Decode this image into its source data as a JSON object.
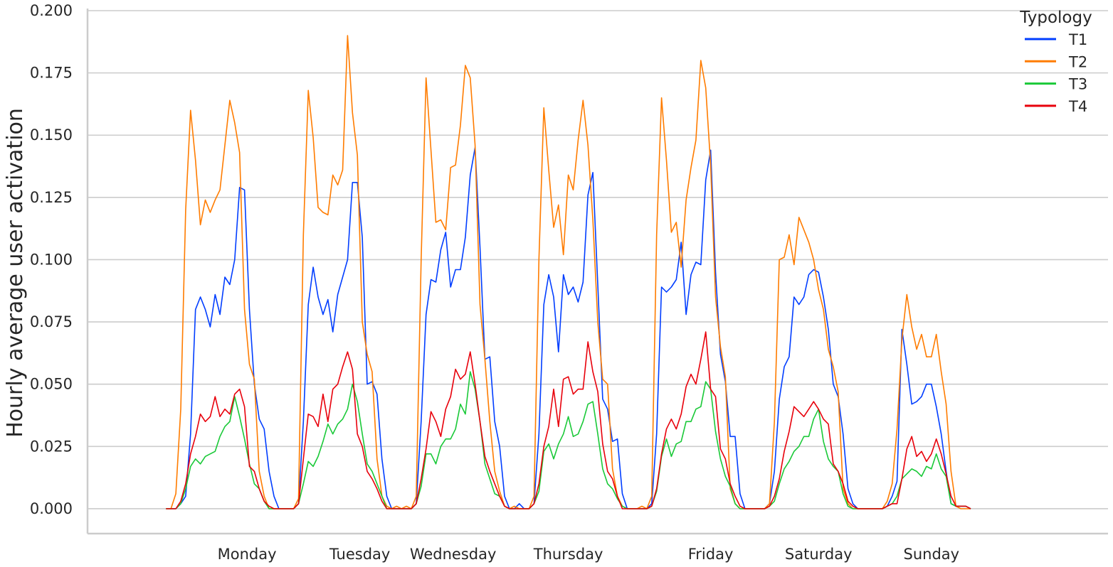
{
  "chart_data": {
    "type": "line",
    "ylabel": "Hourly average user activation",
    "xlabel": "",
    "ylim": [
      -0.01,
      0.2
    ],
    "yticks": [
      "0.000",
      "0.025",
      "0.050",
      "0.075",
      "0.100",
      "0.125",
      "0.150",
      "0.175",
      "0.200"
    ],
    "ytick_values": [
      0,
      0.025,
      0.05,
      0.075,
      0.1,
      0.125,
      0.15,
      0.175,
      0.2
    ],
    "x_unit": "hour of week",
    "xlim": [
      -16,
      192
    ],
    "day_labels": [
      "Monday",
      "Tuesday",
      "Wednesday",
      "Thursday",
      "Friday",
      "Saturday",
      "Sunday"
    ],
    "day_label_hours": [
      16.5,
      39.5,
      58.5,
      82,
      111,
      133,
      156
    ],
    "grid": "horizontal",
    "legend": {
      "title": "Typology",
      "placement": "top-right"
    },
    "series": [
      {
        "name": "T1",
        "color": "#023eff",
        "values": [
          0,
          0,
          0,
          0.002,
          0.005,
          0.03,
          0.08,
          0.085,
          0.08,
          0.073,
          0.086,
          0.078,
          0.093,
          0.09,
          0.1,
          0.129,
          0.128,
          0.08,
          0.05,
          0.036,
          0.032,
          0.015,
          0.005,
          0,
          0,
          0,
          0,
          0.002,
          0.035,
          0.082,
          0.097,
          0.085,
          0.078,
          0.084,
          0.071,
          0.086,
          0.093,
          0.1,
          0.131,
          0.131,
          0.109,
          0.05,
          0.051,
          0.046,
          0.02,
          0.005,
          0,
          0,
          0,
          0,
          0,
          0.002,
          0.035,
          0.078,
          0.092,
          0.091,
          0.104,
          0.111,
          0.089,
          0.096,
          0.096,
          0.109,
          0.134,
          0.145,
          0.105,
          0.06,
          0.061,
          0.035,
          0.025,
          0.005,
          0,
          0,
          0.002,
          0,
          0,
          0.002,
          0.03,
          0.082,
          0.094,
          0.085,
          0.063,
          0.094,
          0.086,
          0.089,
          0.083,
          0.091,
          0.126,
          0.135,
          0.09,
          0.044,
          0.04,
          0.027,
          0.028,
          0.006,
          0,
          0,
          0,
          0,
          0,
          0.002,
          0.03,
          0.089,
          0.087,
          0.089,
          0.092,
          0.107,
          0.078,
          0.094,
          0.099,
          0.098,
          0.132,
          0.144,
          0.095,
          0.062,
          0.051,
          0.029,
          0.029,
          0.006,
          0,
          0,
          0,
          0,
          0,
          0.002,
          0.015,
          0.044,
          0.057,
          0.061,
          0.085,
          0.082,
          0.085,
          0.094,
          0.096,
          0.095,
          0.085,
          0.072,
          0.05,
          0.045,
          0.03,
          0.008,
          0.002,
          0,
          0,
          0,
          0,
          0,
          0,
          0.001,
          0.005,
          0.011,
          0.072,
          0.058,
          0.042,
          0.043,
          0.045,
          0.05,
          0.05,
          0.041,
          0.03,
          0.015,
          0.002,
          0.001,
          0.001,
          0.001,
          0
        ]
      },
      {
        "name": "T2",
        "color": "#ff7c00",
        "values": [
          0,
          0,
          0.006,
          0.04,
          0.12,
          0.16,
          0.14,
          0.114,
          0.124,
          0.119,
          0.124,
          0.128,
          0.146,
          0.164,
          0.155,
          0.143,
          0.08,
          0.058,
          0.052,
          0.015,
          0.005,
          0,
          0,
          0,
          0,
          0,
          0,
          0.004,
          0.11,
          0.168,
          0.149,
          0.121,
          0.119,
          0.118,
          0.134,
          0.13,
          0.136,
          0.19,
          0.159,
          0.142,
          0.075,
          0.062,
          0.055,
          0.02,
          0.005,
          0.001,
          0,
          0.001,
          0,
          0.001,
          0,
          0.005,
          0.1,
          0.173,
          0.144,
          0.115,
          0.116,
          0.112,
          0.137,
          0.138,
          0.154,
          0.178,
          0.173,
          0.146,
          0.082,
          0.06,
          0.035,
          0.015,
          0.007,
          0.001,
          0,
          0.001,
          0,
          0,
          0,
          0.005,
          0.1,
          0.161,
          0.136,
          0.113,
          0.122,
          0.102,
          0.134,
          0.128,
          0.148,
          0.164,
          0.146,
          0.116,
          0.075,
          0.052,
          0.05,
          0.016,
          0.005,
          0.001,
          0,
          0,
          0,
          0.001,
          0,
          0.005,
          0.11,
          0.165,
          0.14,
          0.111,
          0.115,
          0.097,
          0.124,
          0.137,
          0.148,
          0.18,
          0.169,
          0.138,
          0.085,
          0.065,
          0.053,
          0.008,
          0.002,
          0,
          0,
          0,
          0,
          0,
          0,
          0.002,
          0.035,
          0.1,
          0.101,
          0.11,
          0.098,
          0.117,
          0.112,
          0.107,
          0.1,
          0.088,
          0.08,
          0.064,
          0.057,
          0.047,
          0.008,
          0.002,
          0,
          0,
          0,
          0,
          0,
          0,
          0,
          0.003,
          0.01,
          0.032,
          0.068,
          0.086,
          0.073,
          0.064,
          0.07,
          0.061,
          0.061,
          0.07,
          0.055,
          0.042,
          0.015,
          0.001,
          0,
          0,
          0
        ]
      },
      {
        "name": "T3",
        "color": "#1ac938",
        "values": [
          0,
          0,
          0,
          0.002,
          0.008,
          0.017,
          0.02,
          0.018,
          0.021,
          0.022,
          0.023,
          0.029,
          0.033,
          0.035,
          0.045,
          0.037,
          0.028,
          0.018,
          0.01,
          0.008,
          0.003,
          0,
          0,
          0,
          0,
          0,
          0,
          0.002,
          0.01,
          0.019,
          0.017,
          0.021,
          0.027,
          0.034,
          0.03,
          0.034,
          0.036,
          0.04,
          0.05,
          0.043,
          0.03,
          0.018,
          0.015,
          0.01,
          0.005,
          0,
          0,
          0,
          0,
          0,
          0,
          0.002,
          0.009,
          0.022,
          0.022,
          0.018,
          0.025,
          0.028,
          0.028,
          0.032,
          0.042,
          0.038,
          0.055,
          0.048,
          0.035,
          0.018,
          0.012,
          0.006,
          0.005,
          0.001,
          0,
          0,
          0,
          0,
          0,
          0.002,
          0.007,
          0.023,
          0.026,
          0.02,
          0.026,
          0.03,
          0.037,
          0.029,
          0.03,
          0.035,
          0.042,
          0.043,
          0.03,
          0.016,
          0.01,
          0.008,
          0.004,
          0.001,
          0,
          0,
          0,
          0,
          0,
          0.001,
          0.007,
          0.021,
          0.028,
          0.021,
          0.026,
          0.027,
          0.035,
          0.035,
          0.04,
          0.041,
          0.051,
          0.048,
          0.031,
          0.02,
          0.013,
          0.009,
          0.002,
          0,
          0,
          0,
          0,
          0,
          0,
          0.001,
          0.003,
          0.01,
          0.016,
          0.019,
          0.023,
          0.025,
          0.029,
          0.029,
          0.036,
          0.04,
          0.027,
          0.02,
          0.017,
          0.015,
          0.006,
          0.001,
          0,
          0,
          0,
          0,
          0,
          0,
          0,
          0.001,
          0.002,
          0.005,
          0.012,
          0.014,
          0.016,
          0.015,
          0.013,
          0.017,
          0.016,
          0.022,
          0.016,
          0.013,
          0.002,
          0.001,
          0.001,
          0.001,
          0
        ]
      },
      {
        "name": "T4",
        "color": "#e8000b",
        "values": [
          0,
          0,
          0,
          0.003,
          0.01,
          0.022,
          0.029,
          0.038,
          0.035,
          0.037,
          0.045,
          0.037,
          0.04,
          0.038,
          0.046,
          0.048,
          0.041,
          0.017,
          0.015,
          0.008,
          0.003,
          0.001,
          0,
          0,
          0,
          0,
          0,
          0.002,
          0.02,
          0.038,
          0.037,
          0.033,
          0.046,
          0.035,
          0.048,
          0.05,
          0.057,
          0.063,
          0.056,
          0.03,
          0.025,
          0.015,
          0.012,
          0.008,
          0.003,
          0,
          0,
          0,
          0,
          0,
          0,
          0.002,
          0.012,
          0.024,
          0.039,
          0.035,
          0.029,
          0.04,
          0.045,
          0.056,
          0.052,
          0.054,
          0.063,
          0.05,
          0.035,
          0.021,
          0.015,
          0.01,
          0.005,
          0.001,
          0,
          0,
          0,
          0,
          0,
          0.002,
          0.01,
          0.025,
          0.033,
          0.048,
          0.033,
          0.052,
          0.053,
          0.046,
          0.048,
          0.048,
          0.067,
          0.055,
          0.047,
          0.026,
          0.015,
          0.012,
          0.005,
          0,
          0,
          0,
          0,
          0,
          0,
          0.001,
          0.008,
          0.022,
          0.032,
          0.036,
          0.032,
          0.038,
          0.049,
          0.054,
          0.05,
          0.06,
          0.071,
          0.048,
          0.045,
          0.024,
          0.02,
          0.01,
          0.005,
          0.001,
          0,
          0,
          0,
          0,
          0,
          0.001,
          0.005,
          0.012,
          0.023,
          0.031,
          0.041,
          0.039,
          0.037,
          0.04,
          0.043,
          0.04,
          0.036,
          0.034,
          0.018,
          0.015,
          0.01,
          0.003,
          0.001,
          0,
          0,
          0,
          0,
          0,
          0,
          0.001,
          0.002,
          0.002,
          0.012,
          0.024,
          0.029,
          0.021,
          0.023,
          0.019,
          0.022,
          0.028,
          0.022,
          0.014,
          0.005,
          0.001,
          0.001,
          0.001,
          0
        ]
      }
    ]
  }
}
